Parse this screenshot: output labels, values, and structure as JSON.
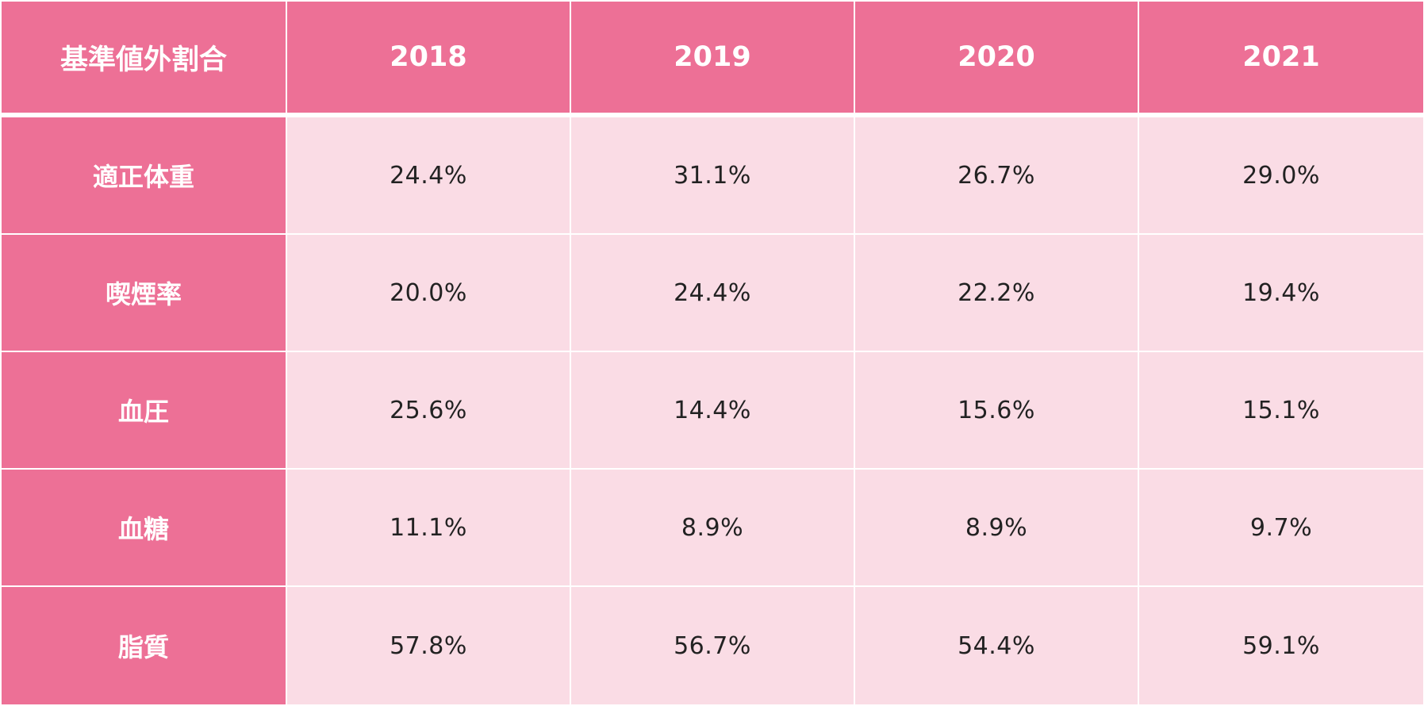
{
  "table": {
    "header": {
      "label": "基準値外割合",
      "years": [
        "2018",
        "2019",
        "2020",
        "2021"
      ]
    },
    "rows": [
      {
        "label": "適正体重",
        "values": [
          "24.4%",
          "31.1%",
          "26.7%",
          "29.0%"
        ]
      },
      {
        "label": "喫煙率",
        "values": [
          "20.0%",
          "24.4%",
          "22.2%",
          "19.4%"
        ]
      },
      {
        "label": "血圧",
        "values": [
          "25.6%",
          "14.4%",
          "15.6%",
          "15.1%"
        ]
      },
      {
        "label": "血糖",
        "values": [
          "11.1%",
          "8.9%",
          "8.9%",
          "9.7%"
        ]
      },
      {
        "label": "脂質",
        "values": [
          "57.8%",
          "56.7%",
          "54.4%",
          "59.1%"
        ]
      }
    ],
    "colors": {
      "header_bg": "#ed7096",
      "cell_bg": "#fadce5",
      "header_text": "#ffffff",
      "cell_text": "#222222"
    }
  }
}
